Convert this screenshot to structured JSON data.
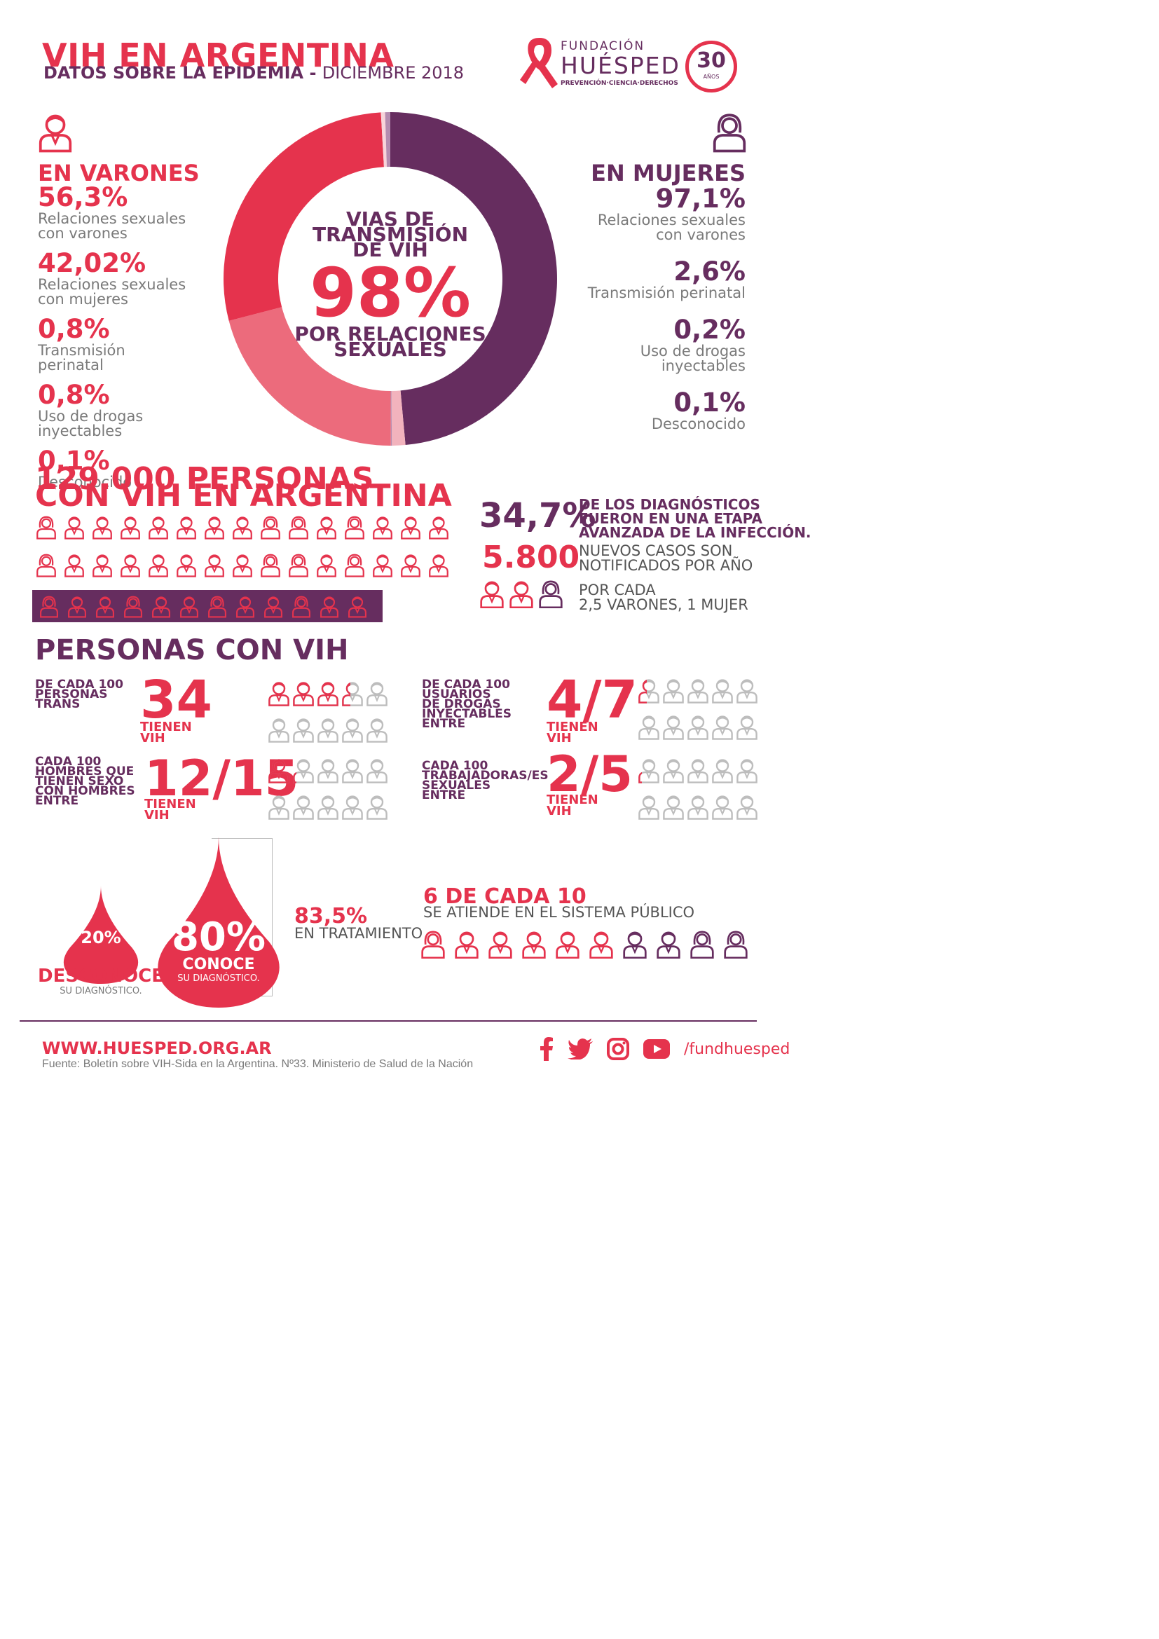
{
  "header": {
    "title": "VIH EN ARGENTINA",
    "subtitle_bold": "DATOS SOBRE LA EPIDEMIA -",
    "subtitle_light": "DICIEMBRE 2018"
  },
  "logo": {
    "fundacion": "FUNDACIÓN",
    "huesped": "HUÉSPED",
    "tagline": "PREVENCIÓN·CIENCIA·DERECHOS",
    "anniversary_num": "30",
    "anniversary_word": "AÑOS"
  },
  "varones": {
    "heading": "EN VARONES",
    "items": [
      {
        "pct": "56,3%",
        "desc1": "Relaciones sexuales",
        "desc2": "con varones"
      },
      {
        "pct": "42,02%",
        "desc1": "Relaciones sexuales",
        "desc2": "con mujeres"
      },
      {
        "pct": "0,8%",
        "desc1": "Transmisión",
        "desc2": "perinatal"
      },
      {
        "pct": "0,8%",
        "desc1": "Uso de drogas",
        "desc2": "inyectables"
      },
      {
        "pct": "0,1%",
        "desc1": "Desconocido",
        "desc2": ""
      }
    ]
  },
  "mujeres": {
    "heading": "EN MUJERES",
    "items": [
      {
        "pct": "97,1%",
        "desc1": "Relaciones sexuales",
        "desc2": "con varones"
      },
      {
        "pct": "2,6%",
        "desc1": "Transmisión perinatal",
        "desc2": ""
      },
      {
        "pct": "0,2%",
        "desc1": "Uso de drogas",
        "desc2": "inyectables"
      },
      {
        "pct": "0,1%",
        "desc1": "Desconocido",
        "desc2": ""
      }
    ]
  },
  "donut_center": {
    "line1": "VIAS DE",
    "line2": "TRANSMISIÓN",
    "line3": "DE VIH",
    "big": "98%",
    "line4": "POR RELACIONES",
    "line5": "SEXUALES"
  },
  "chart_data": {
    "type": "pie",
    "variant": "donut",
    "slices": [
      {
        "value": 48.55,
        "color": "#662d5f"
      },
      {
        "value": 1.3,
        "color": "#f2b3bd"
      },
      {
        "value": 0.1,
        "color": "#b58cb0"
      },
      {
        "value": 21.0,
        "color": "#ec6b7c"
      },
      {
        "value": 28.15,
        "color": "#e5334d"
      },
      {
        "value": 0.4,
        "color": "#f8d4da"
      },
      {
        "value": 0.5,
        "color": "#b58cb0"
      }
    ]
  },
  "people": {
    "title1": "129.000 PERSONAS",
    "title2": "CON VIH EN ARGENTINA",
    "stat1_num": "34,7%",
    "stat1_l1": "DE LOS DIAGNÓSTICOS",
    "stat1_l2": "FUERON EN UNA ETAPA",
    "stat1_l3": "AVANZADA DE LA INFECCIÓN.",
    "stat2_num": "5.800",
    "stat2_l1": "NUEVOS CASOS SON",
    "stat2_l2": "NOTIFICADOS POR AÑO",
    "stat3_l1": "POR CADA",
    "stat3_l2": "2,5 VARONES, 1 MUJER"
  },
  "personas": {
    "heading": "PERSONAS CON VIH",
    "groups": [
      {
        "l1": "DE CADA 100",
        "l2": "PERSONAS",
        "l3": "TRANS",
        "l4": "",
        "l5": "",
        "num": "34",
        "tl1": "TIENEN",
        "tl2": "VIH",
        "filled": 3.4,
        "total": 10
      },
      {
        "l1": "DE CADA 100",
        "l2": "USUARIOS",
        "l3": "DE DROGAS",
        "l4": "INYECTABLES",
        "l5": "ENTRE",
        "num": "4/7",
        "tl1": "TIENEN",
        "tl2": "VIH",
        "filled": 0.4,
        "total": 10
      },
      {
        "l1": "CADA 100",
        "l2": "HOMBRES QUE",
        "l3": "TIENEN SEXO",
        "l4": "CON HOMBRES",
        "l5": "ENTRE",
        "num": "12/15",
        "tl1": "TIENEN",
        "tl2": "VIH",
        "filled": 1.2,
        "total": 10
      },
      {
        "l1": "CADA 100",
        "l2": "TRABAJADORAS/ES",
        "l3": "SEXUALES",
        "l4": "ENTRE",
        "l5": "",
        "num": "2/5",
        "tl1": "TIENEN",
        "tl2": "VIH",
        "filled": 0.2,
        "total": 10
      }
    ]
  },
  "drops": {
    "small_pct": "20%",
    "small_l1": "DESCONOCE",
    "small_l2": "SU DIAGNÓSTICO.",
    "big_pct": "80%",
    "big_l1": "CONOCE",
    "big_l2": "SU DIAGNÓSTICO.",
    "treat_pct": "83,5%",
    "treat_l": "EN TRATAMIENTO",
    "public_head": "6 DE CADA 10",
    "public_l": "SE ATIENDE EN EL SISTEMA PÚBLICO"
  },
  "footer": {
    "url": "WWW.HUESPED.ORG.AR",
    "source": "Fuente: Boletín sobre VIH-Sida en la Argentina. Nº33. Ministerio de Salud de la Nación",
    "handle": "/fundhuesped"
  },
  "colors": {
    "red": "#e5334d",
    "purple": "#662d5f",
    "pink": "#ec6b7c",
    "grey": "#bdbdbd"
  }
}
